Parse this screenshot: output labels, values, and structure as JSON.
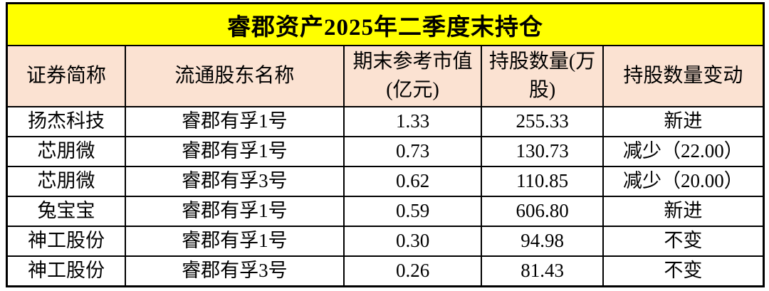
{
  "chart_data": {
    "type": "table",
    "title": "睿郡资产2025年二季度末持仓",
    "columns": [
      "证券简称",
      "流通股东名称",
      "期末参考市值(亿元)",
      "持股数量(万股)",
      "持股数量变动"
    ],
    "rows": [
      [
        "扬杰科技",
        "睿郡有孚1号",
        "1.33",
        "255.33",
        "新进"
      ],
      [
        "芯朋微",
        "睿郡有孚1号",
        "0.73",
        "130.73",
        "减少（22.00）"
      ],
      [
        "芯朋微",
        "睿郡有孚3号",
        "0.62",
        "110.85",
        "减少（20.00）"
      ],
      [
        "兔宝宝",
        "睿郡有孚1号",
        "0.59",
        "606.80",
        "新进"
      ],
      [
        "神工股份",
        "睿郡有孚1号",
        "0.30",
        "94.98",
        "不变"
      ],
      [
        "神工股份",
        "睿郡有孚3号",
        "0.26",
        "81.43",
        "不变"
      ]
    ],
    "layout": {
      "grid": true,
      "title_position": "top-banner"
    }
  },
  "colors": {
    "title_background": "#FFFF00",
    "header_background": "#FBE2D2",
    "row_background": "#FFFFFF",
    "border": "#000000",
    "text": "#000000"
  }
}
